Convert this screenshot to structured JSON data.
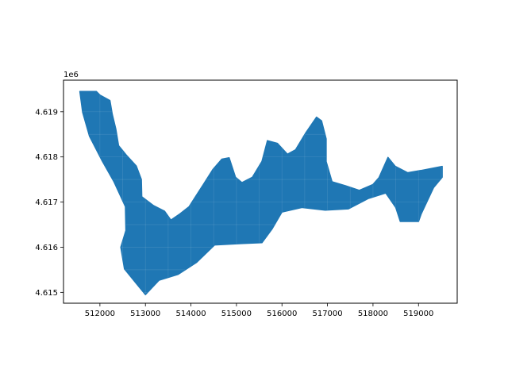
{
  "map": {
    "x_ticks": [
      "512000",
      "513000",
      "514000",
      "515000",
      "516000",
      "517000",
      "518000",
      "519000"
    ],
    "y_ticks": [
      "4.615",
      "4.616",
      "4.617",
      "4.618",
      "4.619"
    ],
    "y_offset_label": "1e6",
    "fill_color": "#1f77b4",
    "axes_color": "#000000",
    "background": "#ffffff",
    "x_range": [
      511200,
      519850
    ],
    "y_range": [
      4614760,
      4619700
    ],
    "x_tick_values": [
      512000,
      513000,
      514000,
      515000,
      516000,
      517000,
      518000,
      519000
    ],
    "y_tick_values": [
      4615000,
      4616000,
      4617000,
      4618000,
      4619000
    ],
    "region_outline": [
      [
        511560,
        4619450
      ],
      [
        511920,
        4619450
      ],
      [
        512000,
        4619370
      ],
      [
        512220,
        4619250
      ],
      [
        512270,
        4618950
      ],
      [
        512350,
        4618620
      ],
      [
        512410,
        4618250
      ],
      [
        512580,
        4618040
      ],
      [
        512800,
        4617800
      ],
      [
        512910,
        4617500
      ],
      [
        512920,
        4617120
      ],
      [
        513180,
        4616920
      ],
      [
        513420,
        4616800
      ],
      [
        513560,
        4616600
      ],
      [
        513760,
        4616740
      ],
      [
        513960,
        4616900
      ],
      [
        514100,
        4617120
      ],
      [
        514280,
        4617400
      ],
      [
        514480,
        4617720
      ],
      [
        514680,
        4617950
      ],
      [
        514840,
        4617980
      ],
      [
        514980,
        4617550
      ],
      [
        515120,
        4617430
      ],
      [
        515350,
        4617550
      ],
      [
        515560,
        4617900
      ],
      [
        515680,
        4618360
      ],
      [
        515900,
        4618300
      ],
      [
        516120,
        4618060
      ],
      [
        516300,
        4618160
      ],
      [
        516520,
        4618530
      ],
      [
        516760,
        4618880
      ],
      [
        516870,
        4618800
      ],
      [
        516970,
        4618400
      ],
      [
        516970,
        4617900
      ],
      [
        517100,
        4617450
      ],
      [
        517400,
        4617360
      ],
      [
        517700,
        4617260
      ],
      [
        518000,
        4617390
      ],
      [
        518130,
        4617540
      ],
      [
        518330,
        4617990
      ],
      [
        518490,
        4617790
      ],
      [
        518760,
        4617650
      ],
      [
        519050,
        4617700
      ],
      [
        519520,
        4617790
      ],
      [
        519520,
        4617550
      ],
      [
        519330,
        4617320
      ],
      [
        519060,
        4616740
      ],
      [
        519000,
        4616570
      ],
      [
        518600,
        4616570
      ],
      [
        518500,
        4616880
      ],
      [
        518280,
        4617200
      ],
      [
        517900,
        4617080
      ],
      [
        517460,
        4616850
      ],
      [
        516950,
        4616820
      ],
      [
        516440,
        4616880
      ],
      [
        516000,
        4616780
      ],
      [
        515780,
        4616400
      ],
      [
        515560,
        4616100
      ],
      [
        515100,
        4616080
      ],
      [
        514520,
        4616050
      ],
      [
        514120,
        4615660
      ],
      [
        513720,
        4615400
      ],
      [
        513300,
        4615270
      ],
      [
        513000,
        4614950
      ],
      [
        512780,
        4615220
      ],
      [
        512540,
        4615520
      ],
      [
        512460,
        4616000
      ],
      [
        512570,
        4616370
      ],
      [
        512560,
        4616900
      ],
      [
        512310,
        4617450
      ],
      [
        512040,
        4617930
      ],
      [
        511770,
        4618460
      ],
      [
        511620,
        4618990
      ]
    ]
  }
}
